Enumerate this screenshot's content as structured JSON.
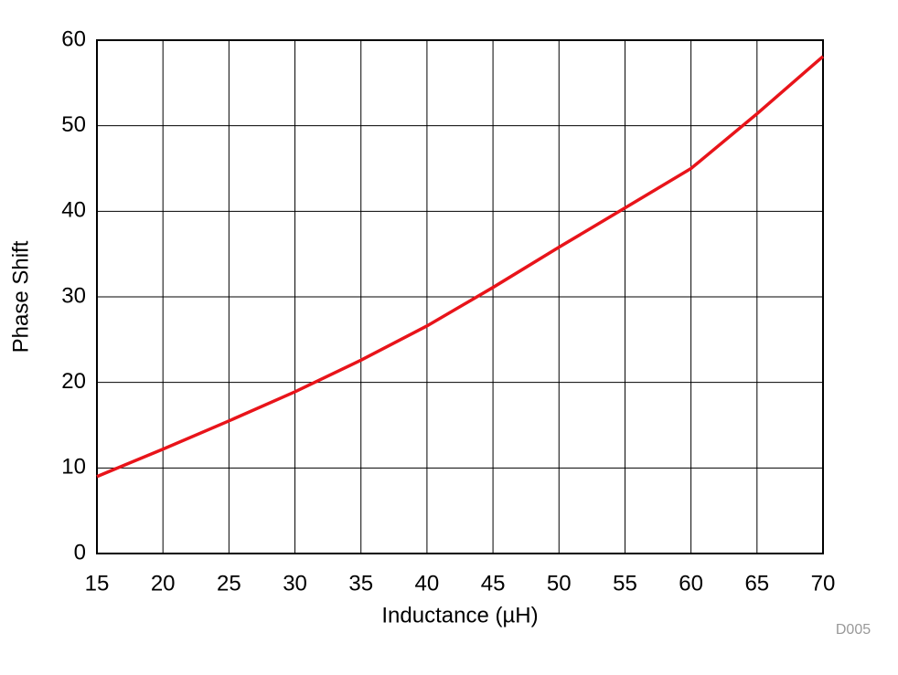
{
  "chart_data": {
    "type": "line",
    "x_label": "Inductance (µH)",
    "y_label": "Phase Shift",
    "annotation": "D005",
    "x": [
      15,
      20,
      25,
      30,
      35,
      40,
      45,
      50,
      55,
      60,
      65,
      70
    ],
    "series": [
      {
        "name": "Phase Shift",
        "color": "#e8141a",
        "values": [
          9.0,
          12.2,
          15.5,
          18.9,
          22.6,
          26.6,
          31.1,
          35.8,
          40.4,
          45.0,
          51.4,
          58.1
        ]
      }
    ],
    "xlim": [
      15,
      70
    ],
    "xticks": [
      15,
      20,
      25,
      30,
      35,
      40,
      45,
      50,
      55,
      60,
      65,
      70
    ],
    "ylim": [
      0,
      60
    ],
    "yticks": [
      0,
      10,
      20,
      30,
      40,
      50,
      60
    ],
    "grid": true
  }
}
